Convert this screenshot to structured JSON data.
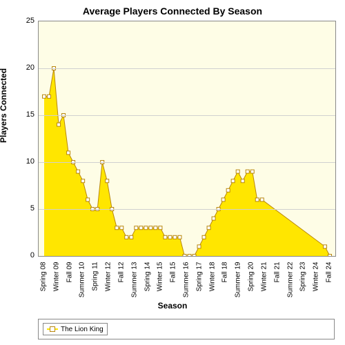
{
  "chart": {
    "type": "area",
    "title": "Average Players Connected By Season",
    "title_fontsize": 14,
    "xlabel": "Season",
    "ylabel": "Players Connected",
    "label_fontsize": 12,
    "tick_fontsize": 11,
    "background_color": "#ffffff",
    "plot_background_color": "#fefde6",
    "grid_color": "#d0d0d0",
    "border_color": "#888888",
    "ylim": [
      0,
      25
    ],
    "ytick_step": 5,
    "yticks": [
      0,
      5,
      10,
      15,
      20,
      25
    ],
    "categories": [
      "Spring 08",
      "Winter 09",
      "Fall 09",
      "Summer 10",
      "Spring 11",
      "Winter 12",
      "Fall 12",
      "Summer 13",
      "Spring 14",
      "Winter 15",
      "Fall 15",
      "Summer 16",
      "Spring 17",
      "Winter 18",
      "Fall 18",
      "Summer 19",
      "Spring 20",
      "Winter 21",
      "Fall 21",
      "Summer 22",
      "Spring 23",
      "Winter 24",
      "Fall 24"
    ],
    "series": {
      "name": "The Lion King",
      "fill_color": "#ffe600",
      "line_color": "#b8860b",
      "marker_style": "square",
      "marker_fill": "#ffffff",
      "marker_stroke": "#b8860b",
      "marker_size": 5,
      "line_width": 1,
      "values": [
        17,
        17,
        20,
        14,
        15,
        11,
        10,
        9,
        8,
        6,
        5,
        5,
        10,
        8,
        5,
        3,
        3,
        2,
        2,
        3,
        3,
        3,
        3,
        3,
        3,
        2,
        2,
        2,
        2,
        0,
        0,
        0,
        1,
        2,
        3,
        4,
        5,
        6,
        7,
        8,
        9,
        8,
        9,
        9,
        6,
        6,
        null,
        null,
        null,
        null,
        null,
        null,
        null,
        null,
        null,
        null,
        null,
        null,
        1,
        0
      ]
    },
    "legend": {
      "position": "bottom",
      "items": [
        "The Lion King"
      ]
    }
  }
}
